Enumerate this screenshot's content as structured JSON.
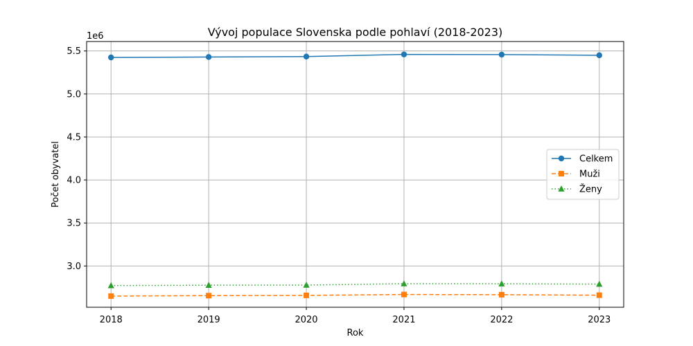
{
  "chart_data": {
    "type": "line",
    "title": "Vývoj populace Slovenska podle pohlaví (2018-2023)",
    "xlabel": "Rok",
    "ylabel": "Počet obyvatel",
    "y_offset_label": "1e6",
    "x": [
      2018,
      2019,
      2020,
      2021,
      2022,
      2023
    ],
    "x_tick_labels": [
      "2018",
      "2019",
      "2020",
      "2021",
      "2022",
      "2023"
    ],
    "y_ticks": [
      3.0,
      3.5,
      4.0,
      4.5,
      5.0,
      5.5
    ],
    "y_tick_labels": [
      "3.0",
      "3.5",
      "4.0",
      "4.5",
      "5.0",
      "5.5"
    ],
    "ylim": [
      2.52,
      5.61
    ],
    "xlim": [
      2017.75,
      2023.25
    ],
    "grid": true,
    "legend_position": "center-right",
    "series": [
      {
        "name": "Celkem",
        "color": "#1f77b4",
        "line_style": "solid",
        "marker": "circle",
        "values": [
          5.425,
          5.43,
          5.435,
          5.46,
          5.458,
          5.45
        ]
      },
      {
        "name": "Muži",
        "color": "#ff7f0e",
        "line_style": "dashed",
        "marker": "square",
        "values": [
          2.65,
          2.655,
          2.658,
          2.668,
          2.666,
          2.66
        ]
      },
      {
        "name": "Ženy",
        "color": "#2ca02c",
        "line_style": "dotted",
        "marker": "triangle",
        "values": [
          2.772,
          2.776,
          2.778,
          2.794,
          2.793,
          2.789
        ]
      }
    ]
  }
}
